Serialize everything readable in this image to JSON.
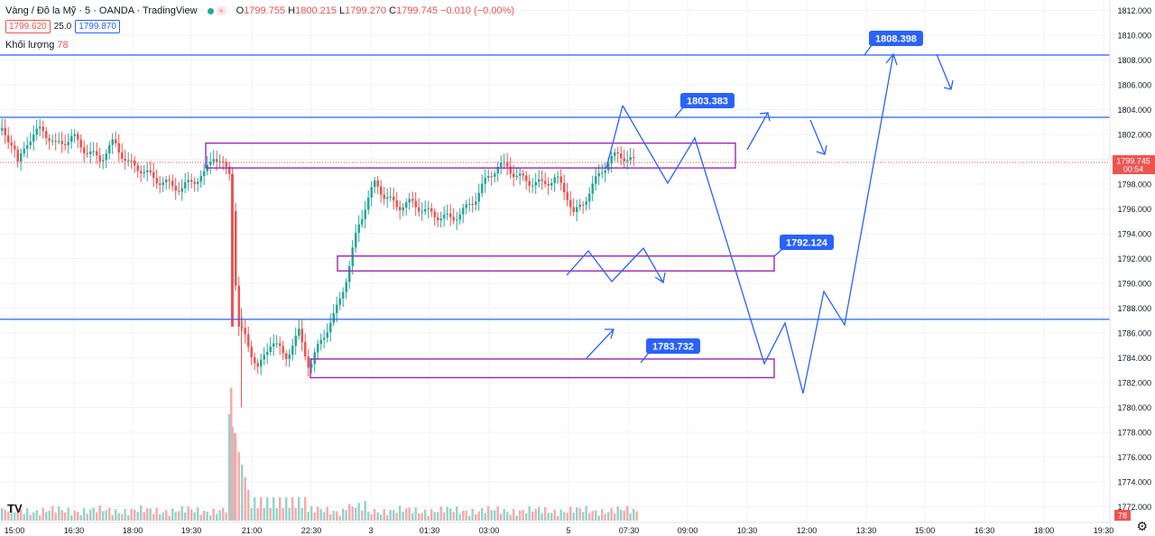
{
  "legend": {
    "title": "Vàng / Đô la Mỹ · 5 · OANDA · TradingView",
    "o_label": "O",
    "o": "1799.755",
    "h_label": "H",
    "h": "1800.215",
    "l_label": "L",
    "l": "1799.270",
    "c_label": "C",
    "c": "1799.745",
    "change": "−0.010 (−0.00%)",
    "indicator_icon": "≈"
  },
  "prices": {
    "bid": "1799.620",
    "spread": "25.0",
    "ask": "1799.870"
  },
  "volume": {
    "label": "Khối lượng",
    "value": "78"
  },
  "current_price": {
    "value": "1799.745",
    "countdown": "00:54"
  },
  "volume_badge": "78",
  "logo": "TV",
  "chart_data": {
    "type": "candlestick",
    "title": "Vàng / Đô la Mỹ · 5 · OANDA · TradingView",
    "ylim": [
      1771,
      1813
    ],
    "ytick_values": [
      1772,
      1774,
      1776,
      1778,
      1780,
      1782,
      1784,
      1786,
      1788,
      1790,
      1792,
      1794,
      1796,
      1798,
      1800,
      1802,
      1804,
      1806,
      1808,
      1810,
      1812
    ],
    "ytick_labels": [
      "1772.000",
      "1774.000",
      "1776.000",
      "1778.000",
      "1780.000",
      "1782.000",
      "1784.000",
      "1786.000",
      "1788.000",
      "1790.000",
      "1792.000",
      "1794.000",
      "1796.000",
      "1798.000",
      "1800.000",
      "1802.000",
      "1804.000",
      "1806.000",
      "1808.000",
      "1810.000",
      "1812.000"
    ],
    "xtick_labels": [
      "15:00",
      "16:30",
      "18:00",
      "19:30",
      "21:00",
      "22:30",
      "3",
      "01:30",
      "03:00",
      "5",
      "07:30",
      "09:00",
      "10:30",
      "12:00",
      "13:30",
      "15:00",
      "16:30",
      "18:00",
      "19:30"
    ],
    "colors": {
      "up": "#26a69a",
      "down": "#ef5350",
      "drawing": "#2962ff",
      "zone": "#9c27b0",
      "axis": "#131722"
    },
    "price_path": [
      [
        0,
        1802.3
      ],
      [
        14,
        1801.2
      ],
      [
        18,
        1799.4
      ],
      [
        28,
        1801.4
      ],
      [
        45,
        1802.5
      ],
      [
        60,
        1801.1
      ],
      [
        80,
        1801.8
      ],
      [
        95,
        1800.6
      ],
      [
        110,
        1800.0
      ],
      [
        125,
        1801.4
      ],
      [
        140,
        1799.7
      ],
      [
        155,
        1799.2
      ],
      [
        170,
        1798.4
      ],
      [
        185,
        1798.0
      ],
      [
        200,
        1797.6
      ],
      [
        210,
        1798.2
      ],
      [
        225,
        1798.7
      ],
      [
        235,
        1800.4
      ],
      [
        245,
        1799.5
      ],
      [
        255,
        1798.8
      ],
      [
        262,
        1786.5
      ],
      [
        270,
        1785.8
      ],
      [
        285,
        1783.0
      ],
      [
        300,
        1785.5
      ],
      [
        315,
        1784.0
      ],
      [
        330,
        1786.0
      ],
      [
        342,
        1783.2
      ],
      [
        355,
        1785.5
      ],
      [
        370,
        1787.5
      ],
      [
        385,
        1791.0
      ],
      [
        395,
        1794.5
      ],
      [
        405,
        1796.5
      ],
      [
        415,
        1798.2
      ],
      [
        425,
        1797.0
      ],
      [
        440,
        1796.2
      ],
      [
        455,
        1796.5
      ],
      [
        470,
        1795.8
      ],
      [
        485,
        1795.4
      ],
      [
        500,
        1795.2
      ],
      [
        515,
        1796.0
      ],
      [
        525,
        1796.8
      ],
      [
        540,
        1798.6
      ],
      [
        550,
        1799.4
      ],
      [
        560,
        1799.5
      ],
      [
        570,
        1798.7
      ],
      [
        585,
        1798.2
      ],
      [
        600,
        1798.0
      ],
      [
        615,
        1798.5
      ],
      [
        628,
        1797.0
      ],
      [
        635,
        1795.5
      ],
      [
        645,
        1796.5
      ],
      [
        655,
        1797.8
      ],
      [
        665,
        1799.0
      ],
      [
        675,
        1800.0
      ],
      [
        685,
        1800.4
      ],
      [
        695,
        1800.0
      ],
      [
        704,
        1799.745
      ]
    ],
    "horizontal_levels": [
      1808.398,
      1803.383,
      1787.1
    ],
    "level_labels": [
      {
        "value": 1808.398,
        "label": "1808.398"
      },
      {
        "value": 1803.383,
        "label": "1803.383"
      },
      {
        "value": 1792.124,
        "label": "1792.124"
      },
      {
        "value": 1783.732,
        "label": "1783.732"
      }
    ],
    "zones": [
      {
        "low": 1799.3,
        "high": 1801.3
      },
      {
        "low": 1791.0,
        "high": 1792.2
      },
      {
        "low": 1782.4,
        "high": 1783.9
      }
    ],
    "last_price": 1799.745
  }
}
